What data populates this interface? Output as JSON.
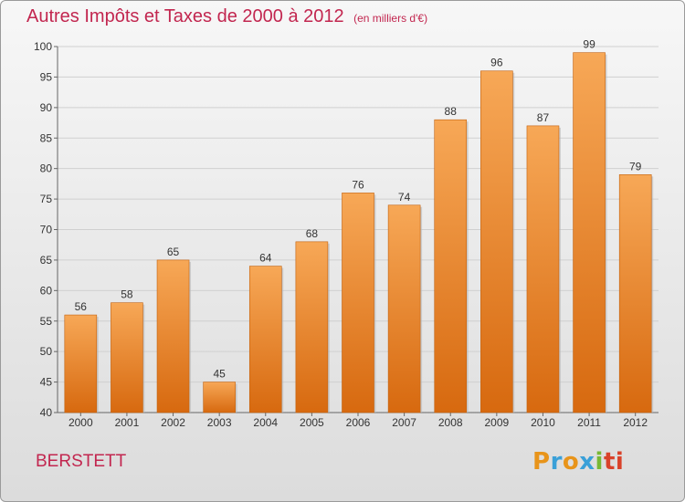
{
  "header": {
    "title": "Autres Impôts et Taxes de 2000 à 2012",
    "subtitle": "(en milliers d'€)"
  },
  "footer": {
    "commune": "BERSTETT",
    "logo_text": "Proxiti"
  },
  "colors": {
    "title": "#c2264f",
    "bar_light": "#f5a24e",
    "bar_dark": "#d96d12",
    "grid": "#d0d0d0"
  },
  "chart_data": {
    "type": "bar",
    "title": "Autres Impôts et Taxes de 2000 à 2012",
    "subtitle": "(en milliers d'€)",
    "xlabel": "",
    "ylabel": "",
    "categories": [
      "2000",
      "2001",
      "2002",
      "2003",
      "2004",
      "2005",
      "2006",
      "2007",
      "2008",
      "2009",
      "2010",
      "2011",
      "2012"
    ],
    "values": [
      56,
      58,
      65,
      45,
      64,
      68,
      76,
      74,
      88,
      96,
      87,
      99,
      79
    ],
    "ylim": [
      40,
      100
    ],
    "yticks": [
      40,
      45,
      50,
      55,
      60,
      65,
      70,
      75,
      80,
      85,
      90,
      95,
      100
    ],
    "grid": true,
    "legend": "none"
  }
}
